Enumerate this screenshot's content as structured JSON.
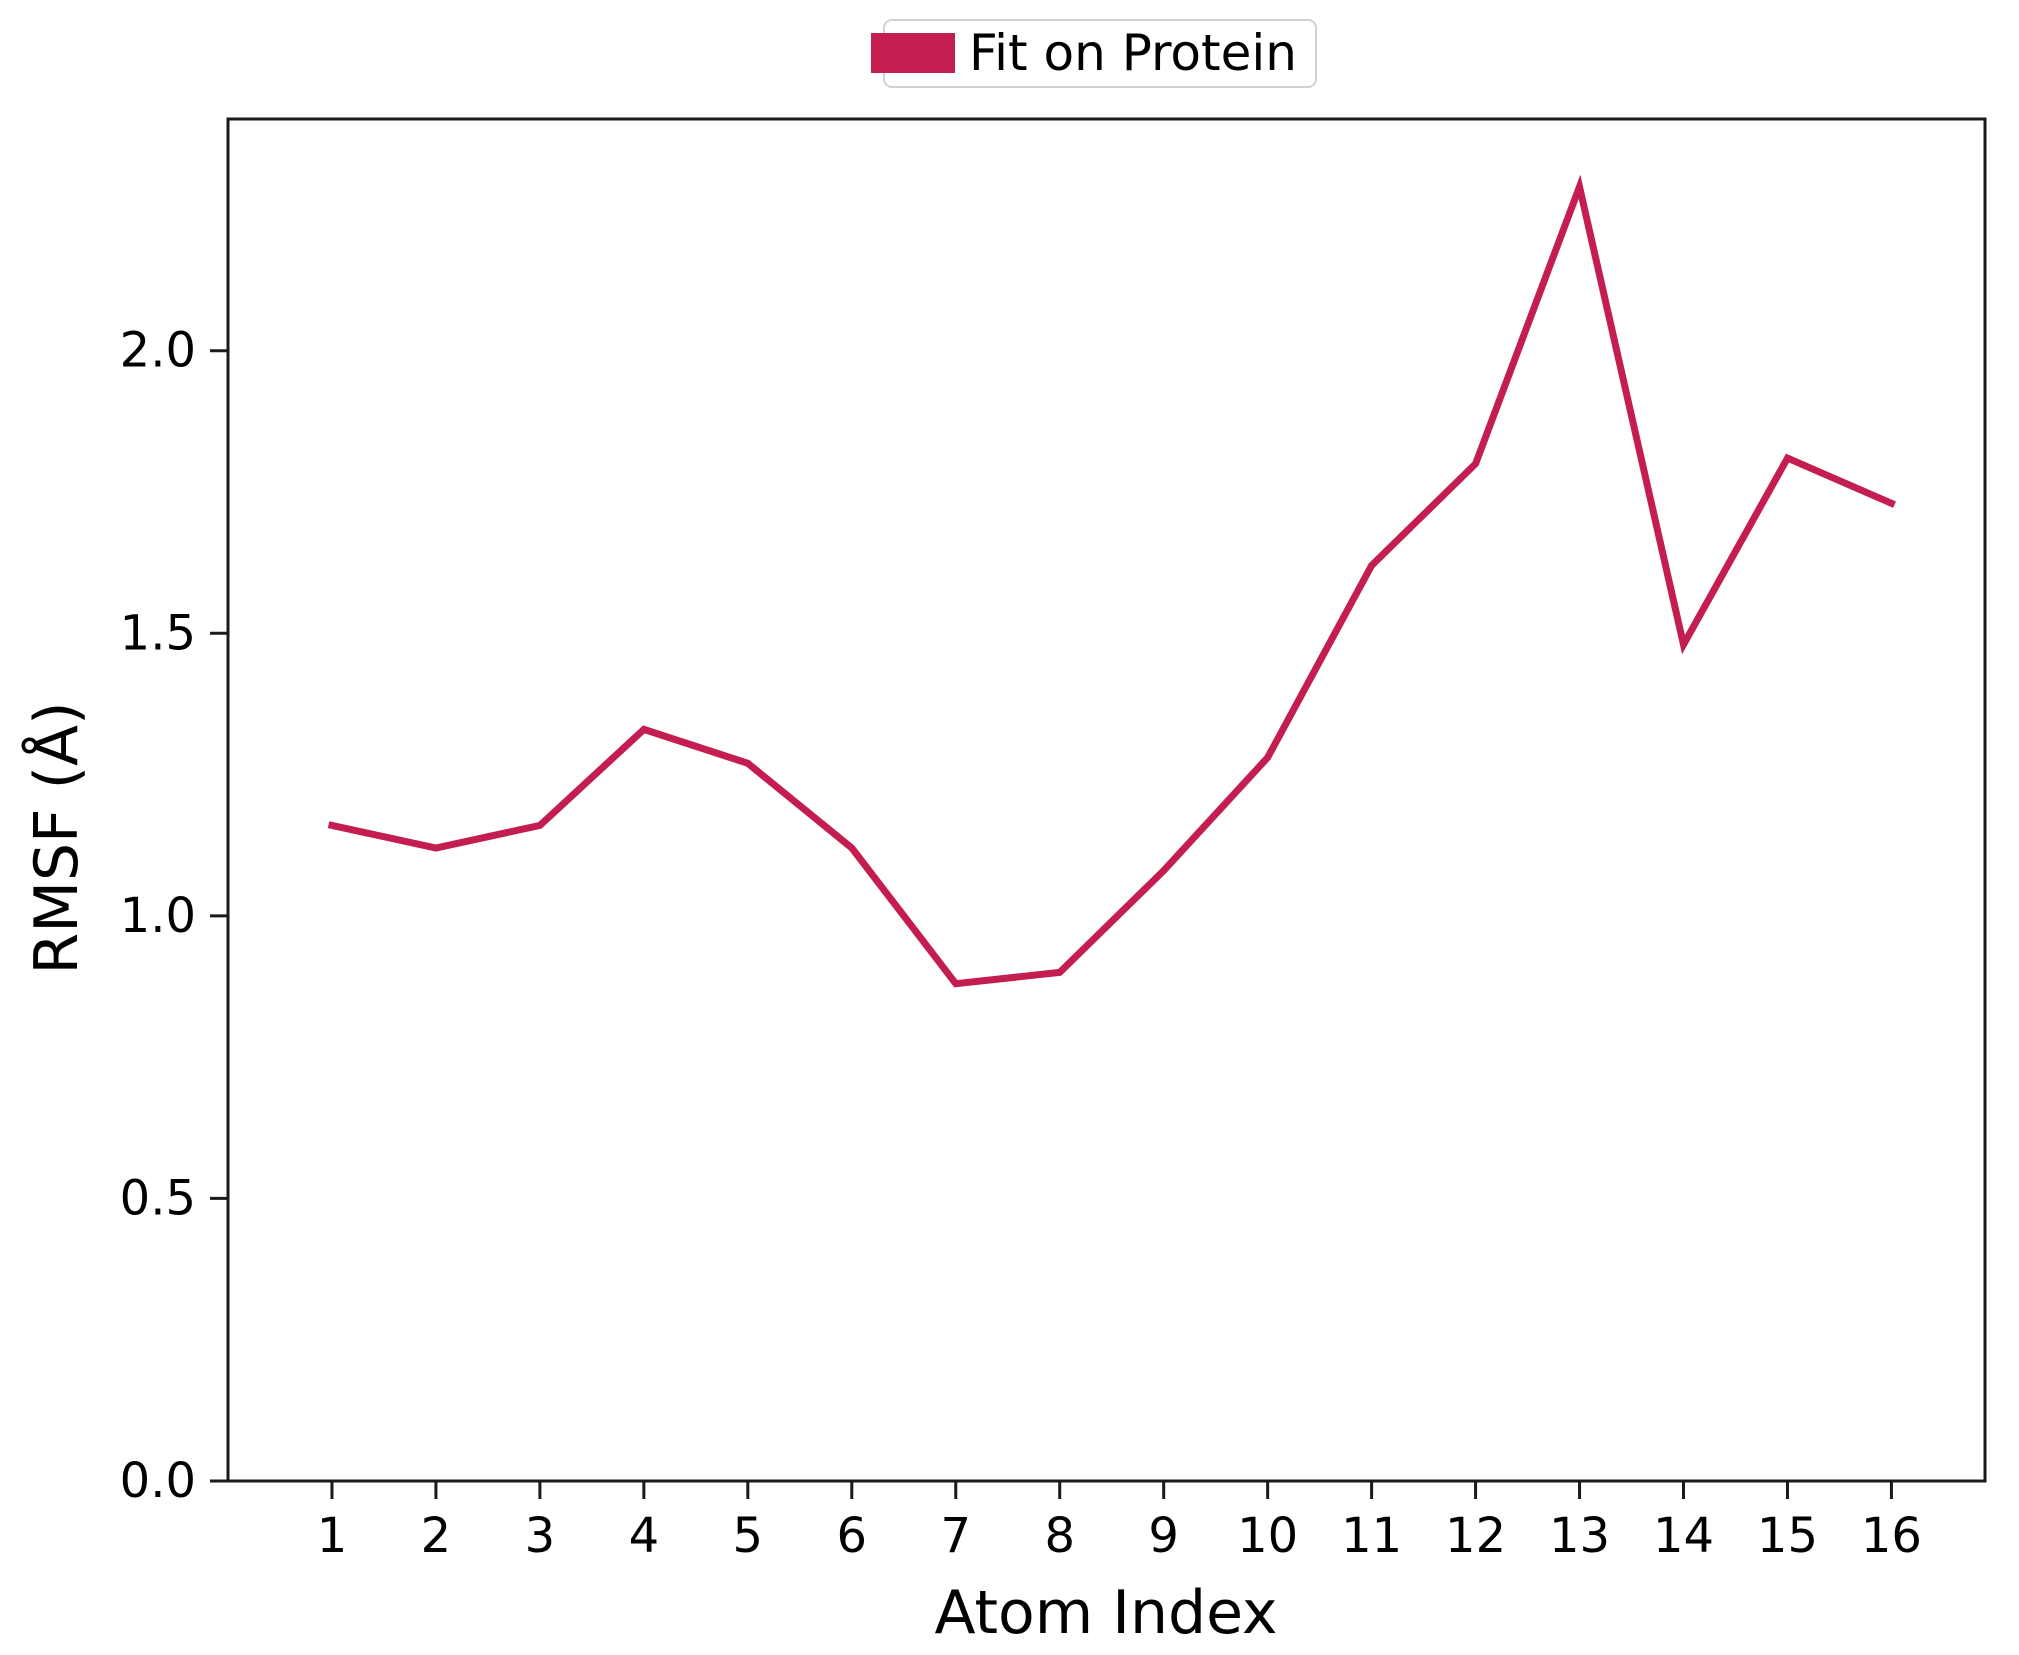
{
  "colors": {
    "line": "#C41E50",
    "axis": "#1a1a1a",
    "text": "#000000",
    "legend_border": "#d2d2d2",
    "background": "#ffffff"
  },
  "legend": {
    "label": "Fit on Protein",
    "position": "top-center"
  },
  "chart_data": {
    "type": "line",
    "title": "",
    "xlabel": "Atom Index",
    "ylabel": "RMSF (Å)",
    "x": [
      1,
      2,
      3,
      4,
      5,
      6,
      7,
      8,
      9,
      10,
      11,
      12,
      13,
      14,
      15,
      16
    ],
    "series": [
      {
        "name": "Fit on Protein",
        "color": "#C41E50",
        "values": [
          1.16,
          1.12,
          1.16,
          1.33,
          1.27,
          1.12,
          0.88,
          0.9,
          1.08,
          1.28,
          1.62,
          1.8,
          2.29,
          1.48,
          1.81,
          1.73
        ]
      }
    ],
    "xticks": [
      "1",
      "2",
      "3",
      "4",
      "5",
      "6",
      "7",
      "8",
      "9",
      "10",
      "11",
      "12",
      "13",
      "14",
      "15",
      "16"
    ],
    "xtick_values": [
      1,
      2,
      3,
      4,
      5,
      6,
      7,
      8,
      9,
      10,
      11,
      12,
      13,
      14,
      15,
      16
    ],
    "yticks": [
      "0.0",
      "0.5",
      "1.0",
      "1.5",
      "2.0"
    ],
    "ytick_values": [
      0,
      0.5,
      1.0,
      1.5,
      2.0
    ],
    "xlim": [
      0.0,
      16.9
    ],
    "ylim": [
      0.0,
      2.41
    ],
    "grid": false,
    "legend_position": "upper center outside",
    "line_width": 7
  }
}
